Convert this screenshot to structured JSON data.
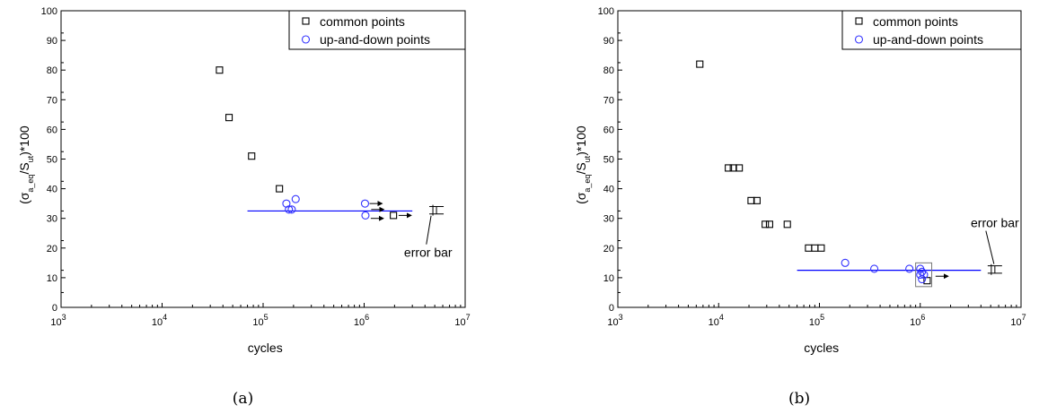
{
  "chart_data": [
    {
      "type": "scatter",
      "caption": "(a)",
      "xlabel": "cycles",
      "ylabel": "(σ_a_eq/S_ut)*100",
      "x_scale": "log",
      "xlim": [
        1000,
        10000000
      ],
      "ylim": [
        0,
        100
      ],
      "x_ticks": [
        {
          "value": 1000,
          "base": "10",
          "exp": "3"
        },
        {
          "value": 10000,
          "base": "10",
          "exp": "4"
        },
        {
          "value": 100000,
          "base": "10",
          "exp": "5"
        },
        {
          "value": 1000000,
          "base": "10",
          "exp": "6"
        },
        {
          "value": 10000000,
          "base": "10",
          "exp": "7"
        }
      ],
      "y_ticks": [
        0,
        10,
        20,
        30,
        40,
        50,
        60,
        70,
        80,
        90,
        100
      ],
      "legend_position": "top-right",
      "series": [
        {
          "name": "common points",
          "marker": "square",
          "color": "#000000",
          "x": [
            37000,
            46000,
            77000,
            145000,
            1950000
          ],
          "y": [
            80,
            64,
            51,
            40,
            31
          ]
        },
        {
          "name": "up-and-down points",
          "marker": "circle",
          "color": "#3333ff",
          "x": [
            170000,
            180000,
            192000,
            210000,
            1020000,
            1030000
          ],
          "y": [
            35,
            33,
            33,
            36.5,
            35,
            31
          ]
        }
      ],
      "runouts": [
        {
          "x": 1020000,
          "y": 35
        },
        {
          "x": 1060000,
          "y": 33
        },
        {
          "x": 1050000,
          "y": 30
        },
        {
          "x": 1980000,
          "y": 31
        }
      ],
      "mean_line": {
        "x1": 70000,
        "x2": 3000000,
        "y": 32.5,
        "color": "#0000ff"
      },
      "error_bar": {
        "x": 5200000,
        "y_low": 31.5,
        "y_high": 34,
        "label": "error bar",
        "label_x": 4300000,
        "label_y": 17
      }
    },
    {
      "type": "scatter",
      "caption": "(b)",
      "xlabel": "cycles",
      "ylabel": "(σ_a_eq/S_ut)*100",
      "x_scale": "log",
      "xlim": [
        1000,
        10000000
      ],
      "ylim": [
        0,
        100
      ],
      "x_ticks": [
        {
          "value": 1000,
          "base": "10",
          "exp": "3"
        },
        {
          "value": 10000,
          "base": "10",
          "exp": "4"
        },
        {
          "value": 100000,
          "base": "10",
          "exp": "5"
        },
        {
          "value": 1000000,
          "base": "10",
          "exp": "6"
        },
        {
          "value": 10000000,
          "base": "10",
          "exp": "7"
        }
      ],
      "y_ticks": [
        0,
        10,
        20,
        30,
        40,
        50,
        60,
        70,
        80,
        90,
        100
      ],
      "legend_position": "top-right",
      "series": [
        {
          "name": "common points",
          "marker": "square",
          "color": "#000000",
          "x": [
            6500,
            12500,
            14000,
            16000,
            21000,
            24000,
            29000,
            32000,
            48000,
            78000,
            90000,
            104000,
            1170000
          ],
          "y": [
            82,
            47,
            47,
            47,
            36,
            36,
            28,
            28,
            28,
            20,
            20,
            20,
            9
          ]
        },
        {
          "name": "up-and-down points",
          "marker": "circle",
          "color": "#3333ff",
          "x": [
            180000,
            350000,
            780000,
            1000000,
            1040000,
            1090000,
            1000000,
            1040000
          ],
          "y": [
            15,
            13,
            13,
            13,
            12,
            11,
            11,
            9.5
          ]
        }
      ],
      "runouts": [
        {
          "x": 1280000,
          "y": 10.5
        }
      ],
      "highlight_box": {
        "x1": 900000,
        "x2": 1300000,
        "y_low": 7,
        "y_high": 15
      },
      "mean_line": {
        "x1": 60000,
        "x2": 4000000,
        "y": 12.5,
        "color": "#0000ff"
      },
      "error_bar": {
        "x": 5500000,
        "y_low": 11.5,
        "y_high": 14,
        "label": "error bar",
        "label_x": 5500000,
        "label_y": 27
      }
    }
  ]
}
